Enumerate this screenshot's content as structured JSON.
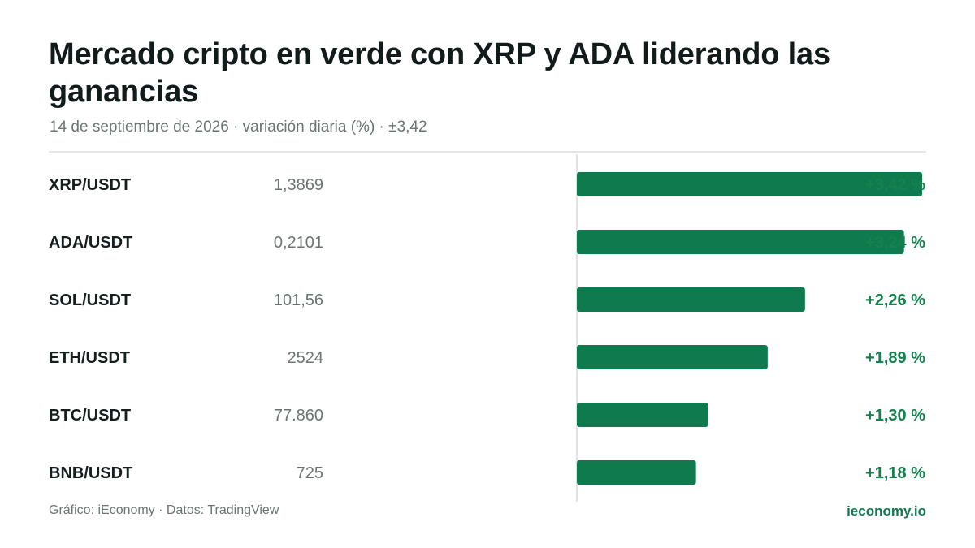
{
  "header": {
    "title": "Mercado cripto en verde con XRP y ADA liderando las ganancias",
    "subtitle": "14 de septiembre de 2026 · variación diaria (%) · ±3,42"
  },
  "footer": {
    "credit": "Gráfico: iEconomy · Datos: TradingView",
    "brand": "ieconomy.io"
  },
  "colors": {
    "bar": "#0f7a4e",
    "change_text": "#17804f",
    "pair_text": "#15201e",
    "price_text": "#6b7471",
    "zero_line": "#d9dcda"
  },
  "chart_data": {
    "type": "bar",
    "orientation": "horizontal",
    "categories": [
      "XRP/USDT",
      "ADA/USDT",
      "SOL/USDT",
      "ETH/USDT",
      "BTC/USDT",
      "BNB/USDT"
    ],
    "prices": [
      "1,3869",
      "0,2101",
      "101,56",
      "2524",
      "77.860",
      "725"
    ],
    "values": [
      3.42,
      3.24,
      2.26,
      1.89,
      1.3,
      1.18
    ],
    "value_labels": [
      "+3,42 %",
      "+3,24 %",
      "+2,26 %",
      "+1,89 %",
      "+1,30 %",
      "+1,18 %"
    ],
    "xlim": [
      -3.42,
      3.42
    ],
    "grid": false
  }
}
